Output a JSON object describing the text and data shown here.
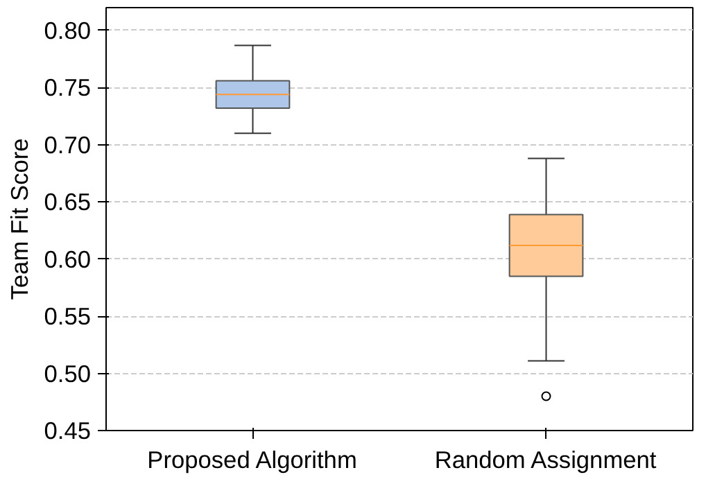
{
  "chart_data": {
    "type": "box",
    "ylabel": "Team Fit Score",
    "categories": [
      "Proposed Algorithm",
      "Random Assignment"
    ],
    "boxes": [
      {
        "low": 0.71,
        "q1": 0.732,
        "median": 0.744,
        "q3": 0.756,
        "high": 0.787
      },
      {
        "low": 0.511,
        "q1": 0.585,
        "median": 0.612,
        "q3": 0.639,
        "high": 0.688,
        "outliers": [
          0.48
        ]
      }
    ],
    "colors": [
      "#aec7e8",
      "#ffcc99"
    ],
    "ylim": [
      0.45,
      0.82
    ],
    "yticks": [
      {
        "value": 0.45,
        "label": "0.45"
      },
      {
        "value": 0.5,
        "label": "0.50"
      },
      {
        "value": 0.55,
        "label": "0.55"
      },
      {
        "value": 0.6,
        "label": "0.60"
      },
      {
        "value": 0.65,
        "label": "0.65"
      },
      {
        "value": 0.7,
        "label": "0.70"
      },
      {
        "value": 0.75,
        "label": "0.75"
      },
      {
        "value": 0.8,
        "label": "0.80"
      }
    ],
    "grid": "y"
  }
}
